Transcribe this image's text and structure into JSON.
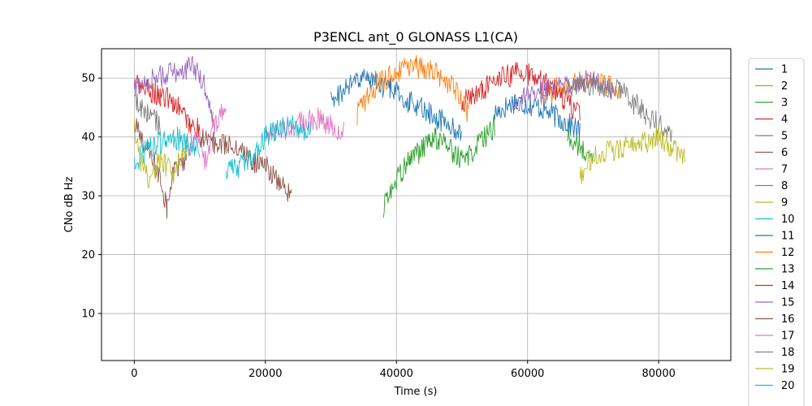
{
  "chart_data": {
    "type": "line",
    "title": "P3ENCL ant_0 GLONASS L1(CA)",
    "xlabel": "Time (s)",
    "ylabel": "CNo dB Hz",
    "xlim": [
      -5000,
      91000
    ],
    "ylim": [
      2,
      55
    ],
    "x_ticks": [
      0,
      20000,
      40000,
      60000,
      80000
    ],
    "y_ticks": [
      10,
      20,
      30,
      40,
      50
    ],
    "grid": true,
    "legend_position": "outside-right",
    "series": [
      {
        "name": "1",
        "color": "#1f77b4",
        "values": [
          [
            55000,
            44
          ],
          [
            58000,
            46
          ],
          [
            62000,
            45
          ],
          [
            65000,
            43
          ],
          [
            68000,
            41
          ]
        ]
      },
      {
        "name": "2",
        "color": "#ff7f0e",
        "values": [
          [
            62000,
            47
          ],
          [
            66000,
            49
          ],
          [
            70000,
            50
          ],
          [
            74000,
            48
          ]
        ]
      },
      {
        "name": "3",
        "color": "#2ca02c",
        "values": [
          [
            66000,
            40
          ],
          [
            68000,
            38
          ],
          [
            70000,
            36
          ]
        ]
      },
      {
        "name": "4",
        "color": "#d62728",
        "values": [
          [
            0,
            49
          ],
          [
            2000,
            48
          ],
          [
            4000,
            47
          ],
          [
            6000,
            46
          ],
          [
            8000,
            43
          ],
          [
            10000,
            41
          ]
        ]
      },
      {
        "name": "5",
        "color": "#9467bd",
        "values": [
          [
            0,
            48
          ],
          [
            3000,
            50
          ],
          [
            6000,
            51
          ],
          [
            9000,
            52
          ],
          [
            11000,
            48
          ],
          [
            12000,
            44
          ]
        ]
      },
      {
        "name": "6",
        "color": "#8c564b",
        "values": [
          [
            0,
            42
          ],
          [
            2000,
            38
          ],
          [
            4000,
            33
          ],
          [
            5000,
            28
          ],
          [
            6000,
            34
          ],
          [
            8000,
            36
          ]
        ]
      },
      {
        "name": "7",
        "color": "#e377c2",
        "values": [
          [
            8000,
            38
          ],
          [
            10000,
            40
          ],
          [
            11000,
            35
          ],
          [
            12000,
            42
          ],
          [
            14000,
            45
          ]
        ]
      },
      {
        "name": "8",
        "color": "#7f7f7f",
        "values": [
          [
            0,
            46
          ],
          [
            2000,
            44
          ],
          [
            4000,
            42
          ]
        ]
      },
      {
        "name": "9",
        "color": "#bcbd22",
        "values": [
          [
            0,
            42
          ],
          [
            1000,
            36
          ],
          [
            2000,
            33
          ],
          [
            4000,
            36
          ],
          [
            6000,
            34
          ],
          [
            8000,
            38
          ]
        ]
      },
      {
        "name": "10",
        "color": "#17becf",
        "values": [
          [
            0,
            35
          ],
          [
            2000,
            38
          ],
          [
            4000,
            39
          ],
          [
            6000,
            40
          ],
          [
            8000,
            39
          ],
          [
            10000,
            38
          ]
        ]
      },
      {
        "name": "11",
        "color": "#1f77b4",
        "values": [
          [
            30000,
            46
          ],
          [
            33000,
            49
          ],
          [
            36000,
            50
          ],
          [
            39000,
            48
          ],
          [
            42000,
            46
          ],
          [
            45000,
            44
          ],
          [
            48000,
            42
          ],
          [
            50000,
            40
          ]
        ]
      },
      {
        "name": "12",
        "color": "#ff7f0e",
        "values": [
          [
            34000,
            44
          ],
          [
            37000,
            49
          ],
          [
            40000,
            51
          ],
          [
            43000,
            52
          ],
          [
            46000,
            51
          ],
          [
            49000,
            48
          ],
          [
            51000,
            44
          ]
        ]
      },
      {
        "name": "13",
        "color": "#2ca02c",
        "values": [
          [
            38000,
            28
          ],
          [
            40000,
            33
          ],
          [
            42000,
            36
          ],
          [
            44000,
            38
          ],
          [
            46000,
            40
          ],
          [
            50000,
            36
          ],
          [
            52000,
            38
          ],
          [
            55000,
            42
          ]
        ]
      },
      {
        "name": "14",
        "color": "#d62728",
        "values": [
          [
            50000,
            46
          ],
          [
            53000,
            48
          ],
          [
            56000,
            50
          ],
          [
            59000,
            51
          ],
          [
            62000,
            50
          ],
          [
            65000,
            47
          ],
          [
            68000,
            44
          ]
        ]
      },
      {
        "name": "15",
        "color": "#9467bd",
        "values": [
          [
            58000,
            46
          ],
          [
            62000,
            48
          ],
          [
            66000,
            49
          ],
          [
            70000,
            50
          ],
          [
            73000,
            48
          ]
        ]
      },
      {
        "name": "16",
        "color": "#8c564b",
        "values": [
          [
            10000,
            40
          ],
          [
            12000,
            39
          ],
          [
            14000,
            39
          ],
          [
            16000,
            38
          ],
          [
            18000,
            36
          ],
          [
            20000,
            35
          ],
          [
            22000,
            32
          ],
          [
            24000,
            30
          ]
        ]
      },
      {
        "name": "17",
        "color": "#e377c2",
        "values": [
          [
            20000,
            40
          ],
          [
            24000,
            42
          ],
          [
            28000,
            43
          ],
          [
            32000,
            41
          ]
        ]
      },
      {
        "name": "18",
        "color": "#7f7f7f",
        "values": [
          [
            66000,
            48
          ],
          [
            70000,
            49
          ],
          [
            74000,
            48
          ],
          [
            78000,
            44
          ],
          [
            82000,
            40
          ]
        ]
      },
      {
        "name": "19",
        "color": "#bcbd22",
        "values": [
          [
            68000,
            33
          ],
          [
            70000,
            37
          ],
          [
            74000,
            38
          ],
          [
            78000,
            39
          ],
          [
            80000,
            40
          ],
          [
            84000,
            36
          ]
        ]
      },
      {
        "name": "20",
        "color": "#17becf",
        "values": [
          [
            14000,
            34
          ],
          [
            16000,
            35
          ],
          [
            18000,
            37
          ],
          [
            20000,
            40
          ],
          [
            24000,
            42
          ],
          [
            27000,
            41
          ]
        ]
      }
    ]
  }
}
